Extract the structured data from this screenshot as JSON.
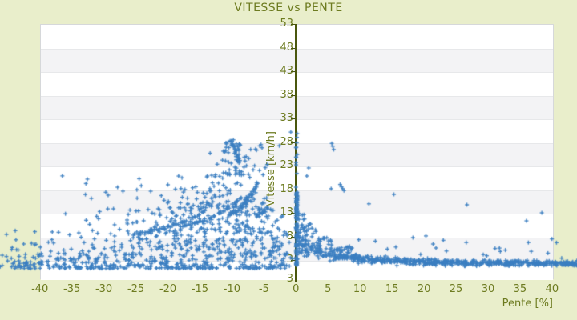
{
  "chart_data": {
    "type": "scatter",
    "title": "VITESSE vs PENTE",
    "xlabel": "Pente [%]",
    "ylabel": "Vitesse [km/h]",
    "x_ticks": [
      -40,
      -35,
      -30,
      -25,
      -20,
      -15,
      -10,
      -5,
      0,
      5,
      10,
      15,
      20,
      25,
      30,
      35,
      40
    ],
    "y_ticks": [
      53,
      48,
      43,
      38,
      33,
      28,
      23,
      18,
      13,
      8,
      3
    ],
    "bottom_axis_label": "3",
    "xlim": [
      -40,
      40.3
    ],
    "ylim": [
      -1,
      53
    ],
    "grid": "horizontal-bands-every-5",
    "legend": "none",
    "marker": "plus-cross-5px",
    "colors": {
      "background": "#e9eecb",
      "label_text": "#6d7b20",
      "axis_line": "#4a570e",
      "band_light": "#ffffff",
      "band_dark": "#f3f3f5",
      "plot_border": "#d6d8da",
      "marker_blue": "#3b7ec1"
    },
    "axis_map": {
      "x0": 369.3,
      "xs": 7.99,
      "y0": 30,
      "vtop": 53,
      "ys": 5.9,
      "plot_bottom": 349
    },
    "point_generation": {
      "seed": 1337,
      "clusters": [
        {
          "kind": "uniform",
          "n": 400,
          "p": [
            -44,
            -0.5
          ],
          "v": [
            1.2,
            4.3
          ],
          "vbias": "low"
        },
        {
          "kind": "uniform",
          "n": 250,
          "p": [
            -42,
            -1
          ],
          "v": [
            4,
            9
          ],
          "pbias": "right"
        },
        {
          "kind": "uniform",
          "n": 160,
          "p": [
            -33,
            -2
          ],
          "v": [
            9,
            14
          ],
          "pbias": "right"
        },
        {
          "kind": "uniform",
          "n": 110,
          "p": [
            -22,
            -2
          ],
          "v": [
            14,
            21
          ],
          "vbias": "low",
          "pbias": "center"
        },
        {
          "kind": "uniform",
          "n": 65,
          "p": [
            -14,
            -3
          ],
          "v": [
            21,
            28.6
          ],
          "vbias": "low",
          "pbias": "center"
        },
        {
          "kind": "uniform",
          "n": 14,
          "p": [
            -38,
            -22
          ],
          "v": [
            13,
            23
          ]
        },
        {
          "kind": "uniform",
          "n": 55,
          "p": [
            -51,
            -40.5
          ],
          "v": [
            1.5,
            9.5
          ],
          "vbias": "low"
        },
        {
          "kind": "arc",
          "n": 45,
          "from": [
            -26,
            8.2
          ],
          "ctrl": [
            -19,
            9.6
          ],
          "to": [
            -14,
            13.6
          ],
          "jitter": 0.18
        },
        {
          "kind": "arc",
          "n": 40,
          "from": [
            -17.5,
            10.2
          ],
          "ctrl": [
            -12.5,
            11.4
          ],
          "to": [
            -8.5,
            16.2
          ],
          "jitter": 0.18
        },
        {
          "kind": "arc",
          "n": 45,
          "from": [
            -10.5,
            12.6
          ],
          "ctrl": [
            -8,
            13.8
          ],
          "to": [
            -6,
            19.4
          ],
          "jitter": 0.15
        },
        {
          "kind": "arc",
          "n": 28,
          "from": [
            -8.8,
            23.6
          ],
          "ctrl": [
            -9.2,
            25.5
          ],
          "to": [
            -10.3,
            28.5
          ],
          "jitter": 0.15
        },
        {
          "kind": "arc",
          "n": 16,
          "from": [
            -6.2,
            12.2
          ],
          "ctrl": [
            -5.2,
            12.8
          ],
          "to": [
            -4.2,
            14.6
          ],
          "jitter": 0.15
        },
        {
          "kind": "band",
          "n": 640,
          "p": [
            0.4,
            44
          ],
          "v_base": 2.3,
          "v_amp": 4.2,
          "v_tau": 7.5,
          "sigma_base": 0.28,
          "sigma_amp": 1.1,
          "sigma_tau": 5
        },
        {
          "kind": "fan",
          "n": 85,
          "p": [
            0.4,
            9
          ],
          "v_min": 4.5,
          "v_amp": 11,
          "v_tau": 3.5
        },
        {
          "kind": "uniform",
          "n": 16,
          "p": [
            9,
            41
          ],
          "v": [
            4,
            8.5
          ]
        },
        {
          "kind": "column",
          "n": 135,
          "p_center": 0.1,
          "p_jitter": 0.12,
          "segments": [
            {
              "v": [
                1.8,
                13.5
              ],
              "w": 0.55
            },
            {
              "v": [
                13.5,
                17.5
              ],
              "w": 0.33
            },
            {
              "v": [
                17.5,
                30
              ],
              "w": 0.12
            }
          ]
        }
      ],
      "outlier_points": [
        [
          5.6,
          27.7
        ],
        [
          5.75,
          27.1
        ],
        [
          5.9,
          26.4
        ],
        [
          5.5,
          18.1
        ],
        [
          2.0,
          22.5
        ],
        [
          1.7,
          20.8
        ],
        [
          6.9,
          19.0
        ],
        [
          7.1,
          18.5
        ],
        [
          7.3,
          18.1
        ],
        [
          7.5,
          17.7
        ],
        [
          15.3,
          16.9
        ],
        [
          26.7,
          14.7
        ],
        [
          38.4,
          13.0
        ],
        [
          36.0,
          11.3
        ],
        [
          26.6,
          6.7
        ],
        [
          32.7,
          5.1
        ],
        [
          36.3,
          6.7
        ],
        [
          11.4,
          14.9
        ],
        [
          -0.8,
          30.1
        ],
        [
          -2.6,
          27.2
        ],
        [
          9.8,
          7.3
        ],
        [
          20.3,
          8.1
        ],
        [
          23.5,
          4.9
        ],
        [
          29.8,
          3.9
        ],
        [
          41.5,
          3.4
        ],
        [
          -32.8,
          19.2
        ],
        [
          -36.0,
          12.8
        ]
      ]
    }
  }
}
